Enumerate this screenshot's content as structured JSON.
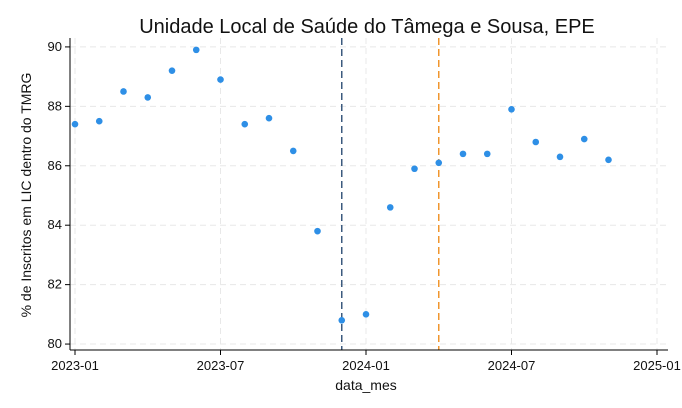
{
  "chart_data": {
    "type": "scatter",
    "title": "Unidade Local de Saúde do Tâmega e Sousa, EPE",
    "xlabel": "data_mes",
    "ylabel": "% de Inscritos em LIC dentro do TMRG",
    "x_ticks": [
      "2023-01",
      "2023-07",
      "2024-01",
      "2024-07",
      "2025-01"
    ],
    "y_ticks": [
      80,
      82,
      84,
      86,
      88,
      90
    ],
    "xlim": [
      "2023-01",
      "2025-01"
    ],
    "ylim": [
      79.8,
      90.3
    ],
    "grid": true,
    "point_color": "#2e8fe6",
    "points": [
      {
        "x": "2023-01",
        "y": 87.4
      },
      {
        "x": "2023-02",
        "y": 87.5
      },
      {
        "x": "2023-03",
        "y": 88.5
      },
      {
        "x": "2023-04",
        "y": 88.3
      },
      {
        "x": "2023-05",
        "y": 89.2
      },
      {
        "x": "2023-06",
        "y": 89.9
      },
      {
        "x": "2023-07",
        "y": 88.9
      },
      {
        "x": "2023-08",
        "y": 87.4
      },
      {
        "x": "2023-09",
        "y": 87.6
      },
      {
        "x": "2023-10",
        "y": 86.5
      },
      {
        "x": "2023-11",
        "y": 83.8
      },
      {
        "x": "2023-12",
        "y": 80.8
      },
      {
        "x": "2024-01",
        "y": 81.0
      },
      {
        "x": "2024-02",
        "y": 84.6
      },
      {
        "x": "2024-03",
        "y": 85.9
      },
      {
        "x": "2024-04",
        "y": 86.1
      },
      {
        "x": "2024-05",
        "y": 86.4
      },
      {
        "x": "2024-06",
        "y": 86.4
      },
      {
        "x": "2024-07",
        "y": 87.9
      },
      {
        "x": "2024-08",
        "y": 86.8
      },
      {
        "x": "2024-09",
        "y": 86.3
      },
      {
        "x": "2024-10",
        "y": 86.9
      },
      {
        "x": "2024-11",
        "y": 86.2
      }
    ],
    "vlines": [
      {
        "x": "2023-12",
        "color": "#3b5a7e"
      },
      {
        "x": "2024-04",
        "color": "#f0962e"
      }
    ]
  }
}
